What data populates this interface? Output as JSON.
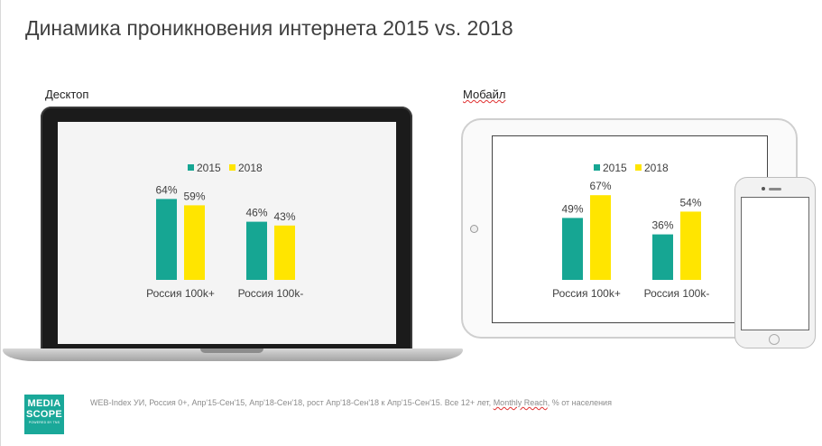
{
  "title": "Динамика проникновения интернета 2015 vs. 2018",
  "desktop": {
    "label": "Десктоп"
  },
  "mobile": {
    "label": "Мобайл"
  },
  "colors": {
    "y2015": "#16a693",
    "y2018": "#ffe500",
    "text": "#404040"
  },
  "chart_data": [
    {
      "type": "bar",
      "name": "desktop",
      "categories": [
        "Россия 100k+",
        "Россия 100k-"
      ],
      "series": [
        {
          "name": "2015",
          "values": [
            64,
            46
          ],
          "labels": [
            "64%",
            "46%"
          ]
        },
        {
          "name": "2018",
          "values": [
            59,
            43
          ],
          "labels": [
            "59%",
            "43%"
          ]
        }
      ],
      "ylim": [
        0,
        100
      ],
      "legend": "top-center",
      "grid": false
    },
    {
      "type": "bar",
      "name": "mobile",
      "categories": [
        "Россия 100k+",
        "Россия 100k-"
      ],
      "series": [
        {
          "name": "2015",
          "values": [
            49,
            36
          ],
          "labels": [
            "49%",
            "36%"
          ]
        },
        {
          "name": "2018",
          "values": [
            67,
            54
          ],
          "labels": [
            "67%",
            "54%"
          ]
        }
      ],
      "ylim": [
        0,
        100
      ],
      "legend": "top-center",
      "grid": false
    }
  ],
  "footer": {
    "logo_line1": "MEDIA",
    "logo_line2": "SCOPE",
    "logo_line3": "POWERED BY TNS",
    "note_before": "WEB-Index УИ, Россия 0+, Апр'15-Сен'15, Апр'18-Сен'18, рост Апр'18-Сен'18 к Апр'15-Сен'15. Все 12+ лет,",
    "note_link": "Monthly Reach",
    "note_after": ", % от населения"
  }
}
